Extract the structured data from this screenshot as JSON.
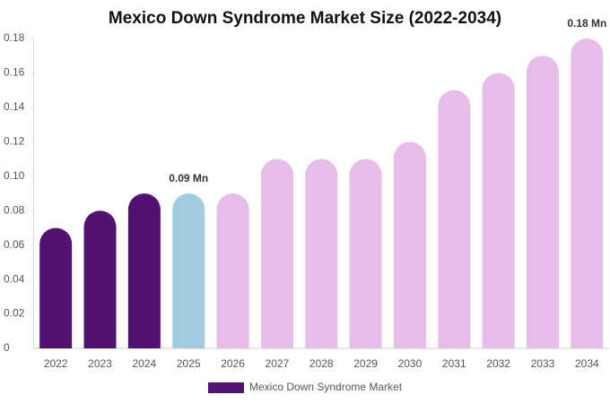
{
  "chart_data": {
    "type": "bar",
    "title": "Mexico Down Syndrome Market Size (2022-2034)",
    "categories": [
      "2022",
      "2023",
      "2024",
      "2025",
      "2026",
      "2027",
      "2028",
      "2029",
      "2030",
      "2031",
      "2032",
      "2033",
      "2034"
    ],
    "series": [
      {
        "name": "Mexico Down Syndrome Market",
        "color": "#521271",
        "colors": [
          "#521271",
          "#521271",
          "#521271",
          "#a3cbe0",
          "#e6bde9",
          "#e6bde9",
          "#e6bde9",
          "#e6bde9",
          "#e6bde9",
          "#e6bde9",
          "#e6bde9",
          "#e6bde9",
          "#e6bde9"
        ],
        "values": [
          0.07,
          0.08,
          0.09,
          0.09,
          0.09,
          0.11,
          0.11,
          0.11,
          0.12,
          0.15,
          0.16,
          0.17,
          0.18
        ],
        "value_labels": [
          null,
          null,
          null,
          "0.09 Mn",
          null,
          null,
          null,
          null,
          null,
          null,
          null,
          null,
          "0.18 Mn"
        ]
      }
    ],
    "ylim": [
      0,
      0.18
    ],
    "yticks": [
      0,
      0.02,
      0.04,
      0.06,
      0.08,
      {
        "value": 0.1,
        "label": "0.10"
      },
      0.12,
      0.14,
      0.16,
      0.18
    ],
    "grid": false
  }
}
